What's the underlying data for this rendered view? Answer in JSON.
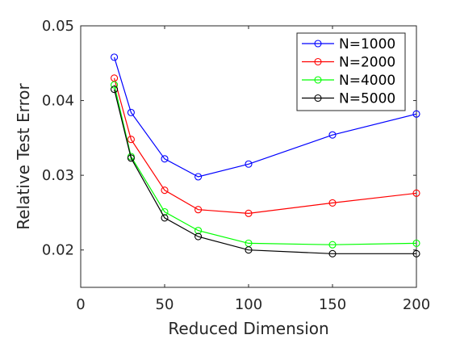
{
  "chart_data": {
    "type": "line",
    "xlabel": "Reduced Dimension",
    "ylabel": "Relative Test Error",
    "xlim": [
      0,
      200
    ],
    "ylim": [
      0.015,
      0.05
    ],
    "xticks": [
      0,
      50,
      100,
      150,
      200
    ],
    "xtick_labels": [
      "0",
      "50",
      "100",
      "150",
      "200"
    ],
    "yticks": [
      0.02,
      0.03,
      0.04,
      0.05
    ],
    "ytick_labels": [
      "0.02",
      "0.03",
      "0.04",
      "0.05"
    ],
    "grid": false,
    "legend": {
      "placement": "top-right"
    },
    "x": [
      20,
      30,
      50,
      70,
      100,
      150,
      200
    ],
    "series": [
      {
        "name": "N=1000",
        "color": "#0000ff",
        "values": [
          0.0458,
          0.0384,
          0.0322,
          0.0298,
          0.0315,
          0.0354,
          0.0382
        ]
      },
      {
        "name": "N=2000",
        "color": "#ff0000",
        "values": [
          0.043,
          0.0348,
          0.028,
          0.0254,
          0.0249,
          0.0263,
          0.0276
        ]
      },
      {
        "name": "N=4000",
        "color": "#00ff00",
        "values": [
          0.0421,
          0.0325,
          0.0251,
          0.0226,
          0.0209,
          0.0207,
          0.0209
        ]
      },
      {
        "name": "N=5000",
        "color": "#000000",
        "values": [
          0.0415,
          0.0323,
          0.0243,
          0.0218,
          0.02,
          0.0195,
          0.0195
        ]
      }
    ]
  }
}
